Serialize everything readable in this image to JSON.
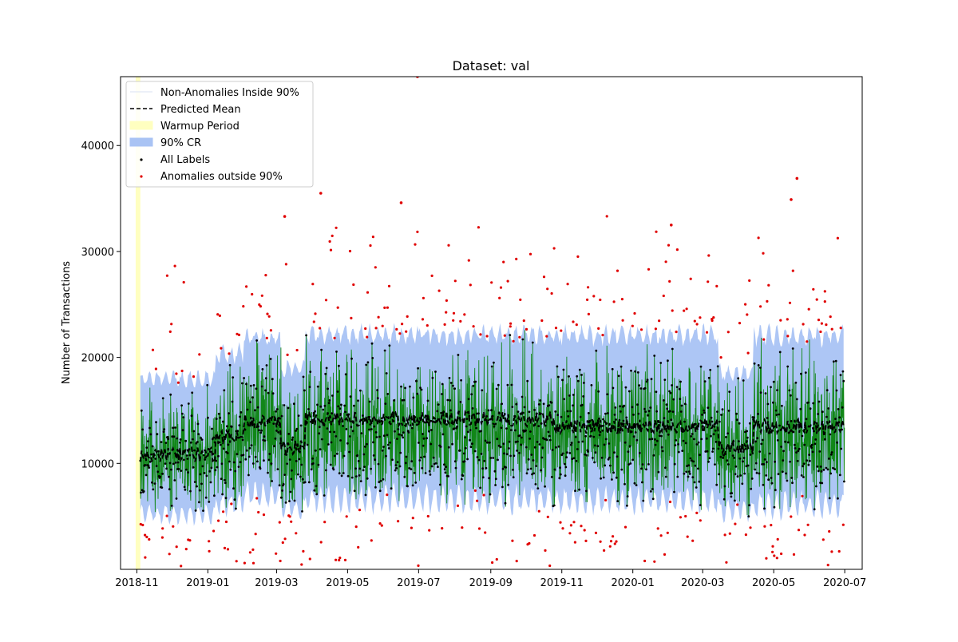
{
  "chart_data": {
    "type": "scatter",
    "title": "Dataset: val",
    "xlabel": "",
    "ylabel": "Number of Transactions",
    "x_type": "date",
    "xlim": [
      "2018-10-18",
      "2020-07-16"
    ],
    "ylim": [
      0,
      46500
    ],
    "x_ticks": [
      "2018-11",
      "2019-01",
      "2019-03",
      "2019-05",
      "2019-07",
      "2019-09",
      "2019-11",
      "2020-01",
      "2020-03",
      "2020-05",
      "2020-07"
    ],
    "y_ticks": [
      10000,
      20000,
      30000,
      40000
    ],
    "y_tick_labels": [
      "10000",
      "20000",
      "30000",
      "40000"
    ],
    "grid": false,
    "legend_position": "top-left",
    "legend": [
      {
        "label": "Non-Anomalies Inside 90%",
        "kind": "line",
        "color": "#e6ecf5"
      },
      {
        "label": "Predicted Mean",
        "kind": "dashed-line",
        "color": "#000000"
      },
      {
        "label": "Warmup Period",
        "kind": "patch",
        "color": "#ffffc0"
      },
      {
        "label": "90% CR",
        "kind": "patch",
        "color": "#a9c3f4"
      },
      {
        "label": "All Labels",
        "kind": "point",
        "color": "#000000"
      },
      {
        "label": "Anomalies outside 90%",
        "kind": "point",
        "color": "#e00000"
      }
    ],
    "warmup_period": {
      "start": "2018-10-31",
      "end": "2018-11-04"
    },
    "regimes": [
      {
        "start": "2018-11-04",
        "end": "2019-01-08",
        "mean": 10800,
        "cr_low": 4000,
        "cr_high": 19000
      },
      {
        "start": "2019-01-08",
        "end": "2019-02-01",
        "mean": 12500,
        "cr_low": 4800,
        "cr_high": 21500
      },
      {
        "start": "2019-02-01",
        "end": "2019-03-05",
        "mean": 14000,
        "cr_low": 5500,
        "cr_high": 23000
      },
      {
        "start": "2019-03-05",
        "end": "2019-03-26",
        "mean": 11500,
        "cr_low": 4500,
        "cr_high": 20000
      },
      {
        "start": "2019-03-26",
        "end": "2019-10-26",
        "mean": 14200,
        "cr_low": 5000,
        "cr_high": 23300
      },
      {
        "start": "2019-10-26",
        "end": "2020-03-15",
        "mean": 13500,
        "cr_low": 5000,
        "cr_high": 23300
      },
      {
        "start": "2020-03-15",
        "end": "2020-04-14",
        "mean": 11500,
        "cr_low": 4300,
        "cr_high": 19500
      },
      {
        "start": "2020-04-14",
        "end": "2020-07-01",
        "mean": 13500,
        "cr_low": 4500,
        "cr_high": 23300
      }
    ],
    "series": [
      {
        "name": "Predicted Mean",
        "style": "dashed",
        "color": "#000000"
      },
      {
        "name": "All Labels",
        "style": "points",
        "color": "#000000"
      },
      {
        "name": "Anomalies outside 90%",
        "style": "points",
        "color": "#e00000"
      }
    ],
    "notable_anomalies": [
      {
        "x": "2019-03-08",
        "y": 33300
      },
      {
        "x": "2019-04-08",
        "y": 35500
      },
      {
        "x": "2019-06-16",
        "y": 34600
      },
      {
        "x": "2019-06-30",
        "y": 46500
      },
      {
        "x": "2020-02-03",
        "y": 32500
      },
      {
        "x": "2020-05-16",
        "y": 34900
      },
      {
        "x": "2020-05-21",
        "y": 36900
      }
    ],
    "colors": {
      "cr_band": "#a9c3f4",
      "label_line": "#008000",
      "warmup": "#ffffc0",
      "anomaly": "#e00000",
      "label_point": "#000000",
      "mean": "#000000"
    }
  }
}
